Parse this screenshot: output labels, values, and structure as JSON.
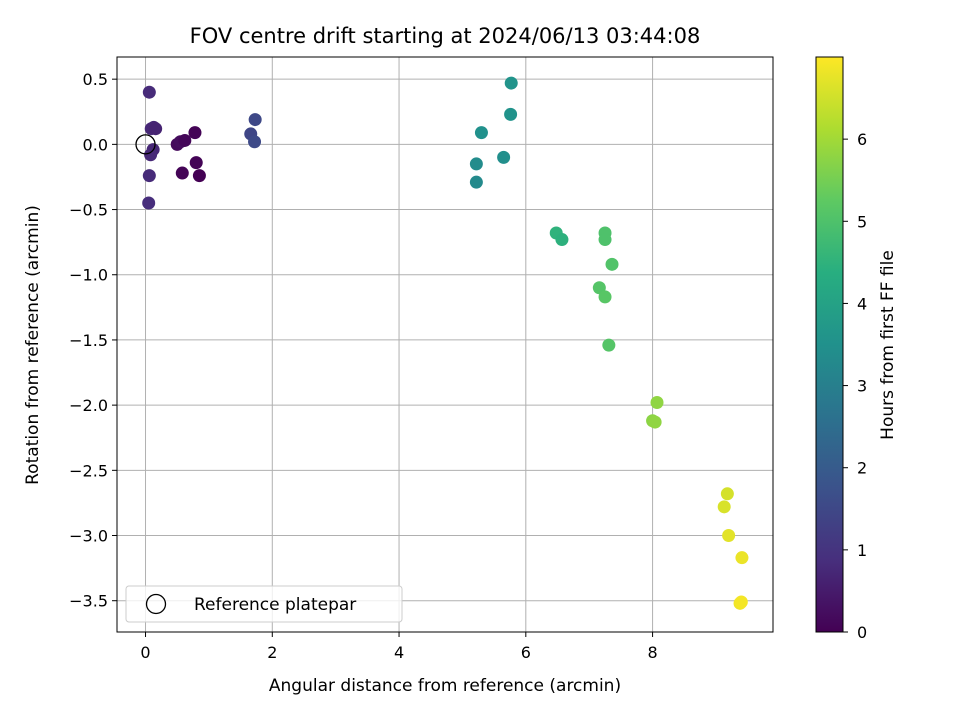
{
  "chart_data": {
    "type": "scatter",
    "title": "FOV centre drift starting at 2024/06/13 03:44:08",
    "xlabel": "Angular distance from reference (arcmin)",
    "ylabel": "Rotation from reference (arcmin)",
    "xlim": [
      -0.45,
      9.9
    ],
    "ylim": [
      -3.74,
      0.67
    ],
    "xticks": [
      0,
      2,
      4,
      6,
      8
    ],
    "xtick_labels": [
      "0",
      "2",
      "4",
      "6",
      "8"
    ],
    "yticks": [
      0.5,
      0.0,
      -0.5,
      -1.0,
      -1.5,
      -2.0,
      -2.5,
      -3.0,
      -3.5
    ],
    "ytick_labels": [
      "0.5",
      "0.0",
      "−0.5",
      "−1.0",
      "−1.5",
      "−2.0",
      "−2.5",
      "−3.0",
      "−3.5"
    ],
    "grid": true,
    "colormap": "viridis",
    "colorbar": {
      "label": "Hours from first FF file",
      "range": [
        0,
        7.0
      ],
      "ticks": [
        0,
        1,
        2,
        3,
        4,
        5,
        6
      ],
      "tick_labels": [
        "0",
        "1",
        "2",
        "3",
        "4",
        "5",
        "6"
      ]
    },
    "series": [
      {
        "name": "drift points",
        "points": [
          {
            "x": 0.06,
            "y": 0.4,
            "hours": 0.8
          },
          {
            "x": 0.09,
            "y": 0.12,
            "hours": 0.75
          },
          {
            "x": 0.13,
            "y": 0.13,
            "hours": 0.7
          },
          {
            "x": 0.16,
            "y": 0.12,
            "hours": 0.65
          },
          {
            "x": 0.12,
            "y": -0.04,
            "hours": 0.7
          },
          {
            "x": 0.08,
            "y": -0.08,
            "hours": 0.75
          },
          {
            "x": 0.06,
            "y": -0.24,
            "hours": 0.8
          },
          {
            "x": 0.05,
            "y": -0.45,
            "hours": 0.85
          },
          {
            "x": 0.5,
            "y": 0.0,
            "hours": 0.15
          },
          {
            "x": 0.55,
            "y": 0.02,
            "hours": 0.2
          },
          {
            "x": 0.62,
            "y": 0.03,
            "hours": 0.1
          },
          {
            "x": 0.78,
            "y": 0.09,
            "hours": 0.05
          },
          {
            "x": 0.58,
            "y": -0.22,
            "hours": 0.05
          },
          {
            "x": 0.8,
            "y": -0.14,
            "hours": 0.05
          },
          {
            "x": 0.85,
            "y": -0.24,
            "hours": 0.0
          },
          {
            "x": 1.73,
            "y": 0.19,
            "hours": 1.5
          },
          {
            "x": 1.66,
            "y": 0.08,
            "hours": 1.45
          },
          {
            "x": 1.72,
            "y": 0.02,
            "hours": 1.55
          },
          {
            "x": 5.77,
            "y": 0.47,
            "hours": 3.6
          },
          {
            "x": 5.76,
            "y": 0.23,
            "hours": 3.55
          },
          {
            "x": 5.3,
            "y": 0.09,
            "hours": 3.5
          },
          {
            "x": 5.65,
            "y": -0.1,
            "hours": 3.45
          },
          {
            "x": 5.22,
            "y": -0.15,
            "hours": 3.35
          },
          {
            "x": 5.22,
            "y": -0.29,
            "hours": 3.3
          },
          {
            "x": 6.48,
            "y": -0.68,
            "hours": 4.5
          },
          {
            "x": 6.57,
            "y": -0.73,
            "hours": 4.45
          },
          {
            "x": 7.25,
            "y": -0.68,
            "hours": 5.0
          },
          {
            "x": 7.25,
            "y": -0.73,
            "hours": 5.0
          },
          {
            "x": 7.36,
            "y": -0.92,
            "hours": 5.05
          },
          {
            "x": 7.16,
            "y": -1.1,
            "hours": 5.1
          },
          {
            "x": 7.25,
            "y": -1.17,
            "hours": 5.15
          },
          {
            "x": 7.31,
            "y": -1.54,
            "hours": 5.1
          },
          {
            "x": 8.07,
            "y": -1.98,
            "hours": 5.8
          },
          {
            "x": 8.0,
            "y": -2.12,
            "hours": 5.75
          },
          {
            "x": 8.04,
            "y": -2.13,
            "hours": 5.8
          },
          {
            "x": 9.18,
            "y": -2.68,
            "hours": 6.55
          },
          {
            "x": 9.13,
            "y": -2.78,
            "hours": 6.6
          },
          {
            "x": 9.2,
            "y": -3.0,
            "hours": 6.7
          },
          {
            "x": 9.41,
            "y": -3.17,
            "hours": 6.8
          },
          {
            "x": 9.38,
            "y": -3.52,
            "hours": 6.85
          },
          {
            "x": 9.4,
            "y": -3.51,
            "hours": 6.9
          }
        ]
      }
    ],
    "reference": {
      "name": "Reference platepar",
      "x": 0.0,
      "y": 0.0
    },
    "legend": {
      "placement": "lower-left",
      "entries": [
        "Reference platepar"
      ]
    }
  }
}
